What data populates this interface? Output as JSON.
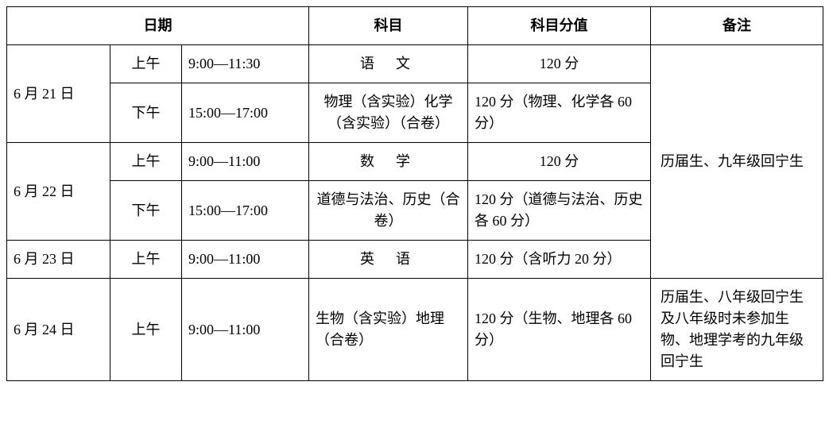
{
  "headers": {
    "date": "日期",
    "subject": "科目",
    "score": "科目分值",
    "note": "备注"
  },
  "rows": {
    "r1": {
      "date": "6 月 21 日",
      "period": "上午",
      "time": "9:00—11:30",
      "subject": "语文",
      "score": "120 分"
    },
    "r2": {
      "period": "下午",
      "time": "15:00—17:00",
      "subject": "物理（含实验）化学（含实验）（合卷）",
      "score": "120 分（物理、化学各 60 分）"
    },
    "r3": {
      "date": "6 月 22 日",
      "period": "上午",
      "time": "9:00—11:00",
      "subject": "数学",
      "score": "120 分"
    },
    "r4": {
      "period": "下午",
      "time": "15:00—17:00",
      "subject": "道德与法治、历史（合卷）",
      "score": "120 分（道德与法治、历史各 60 分）"
    },
    "r5": {
      "date": "6 月 23 日",
      "period": "上午",
      "time": "9:00—11:00",
      "subject": "英语",
      "score": "120 分（含听力 20 分）"
    },
    "r6": {
      "date": "6 月 24 日",
      "period": "上午",
      "time": "9:00—11:00",
      "subject": "生物（含实验）地理（合卷）",
      "score": "120 分（生物、地理各 60 分）"
    }
  },
  "notes": {
    "n1": "历届生、九年级回宁生",
    "n2": "历届生、八年级回宁生及八年级时未参加生物、地理学考的九年级回宁生"
  },
  "style": {
    "border_color": "#000000",
    "background_color": "#ffffff",
    "font_size_pt": 14,
    "header_weight": "bold"
  }
}
